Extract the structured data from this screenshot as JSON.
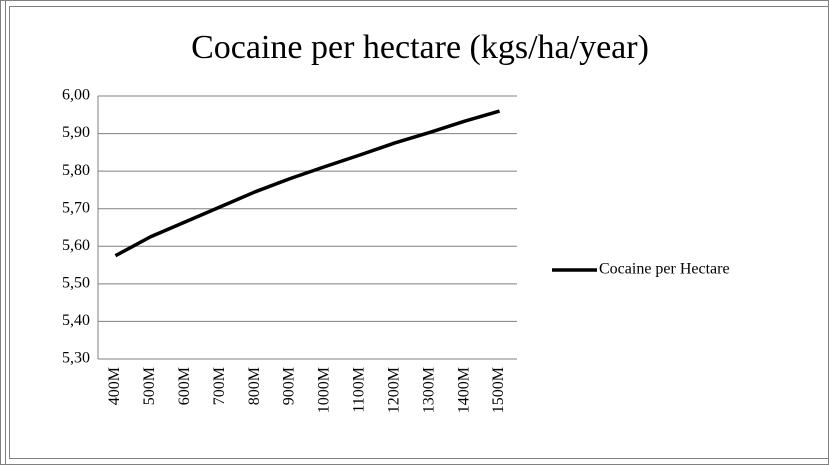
{
  "chart_data": {
    "type": "line",
    "title": "Cocaine per hectare (kgs/ha/year)",
    "categories": [
      "400M",
      "500M",
      "600M",
      "700M",
      "800M",
      "900M",
      "1000M",
      "1100M",
      "1200M",
      "1300M",
      "1400M",
      "1500M"
    ],
    "series": [
      {
        "name": "Cocaine per Hectare",
        "color": "#000000",
        "values": [
          5.575,
          5.625,
          5.665,
          5.705,
          5.745,
          5.78,
          5.812,
          5.843,
          5.875,
          5.903,
          5.933,
          5.96
        ]
      }
    ],
    "ylim": [
      5.3,
      6.0
    ],
    "yticks": [
      {
        "value": 5.3,
        "label": "5,30"
      },
      {
        "value": 5.4,
        "label": "5,40"
      },
      {
        "value": 5.5,
        "label": "5,50"
      },
      {
        "value": 5.6,
        "label": "5,60"
      },
      {
        "value": 5.7,
        "label": "5,70"
      },
      {
        "value": 5.8,
        "label": "5,80"
      },
      {
        "value": 5.9,
        "label": "5,90"
      },
      {
        "value": 6.0,
        "label": "6,00"
      }
    ],
    "grid": true,
    "legend": "right"
  }
}
